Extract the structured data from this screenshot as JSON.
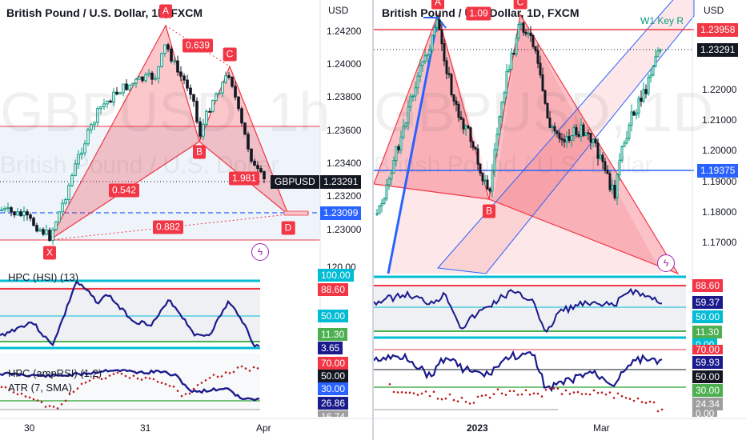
{
  "left": {
    "title": "British Pound / U.S. Dollar, 1h, FXCM",
    "watermark_big": "GBPUSD, 1h",
    "watermark_small": "British Pound / U.S. Dollar",
    "price_axis_unit": "USD",
    "price_ticks": [
      "1.24200",
      "1.24000",
      "1.23800",
      "1.23600",
      "1.23400",
      "1.23200",
      "1.23000",
      "120.00"
    ],
    "symbol_badge": "GBPUSD",
    "last_price_badge": "1.23291",
    "blue_line_badge": "1.23099",
    "pattern_points": [
      "X",
      "A",
      "B",
      "C",
      "D"
    ],
    "ratios": {
      "xb": "0.542",
      "ac": "0.639",
      "bd": "1.981",
      "xd": "0.882"
    },
    "indicator1_label": "HPC (HSI) (13)",
    "indicator1_badges": [
      "100.00",
      "88.60",
      "50.00",
      "11.30",
      "3.65"
    ],
    "indicator2_label": "HPC (ampRSI) (1,2)",
    "indicator3_label": "ATR (7, SMA)",
    "indicator2_badges": [
      "70.00",
      "50.00",
      "30.00",
      "26.86",
      "16.74"
    ],
    "time_ticks": [
      "30",
      "31",
      "Apr"
    ],
    "colors": {
      "bullish": "#089981",
      "bearish": "#131722",
      "pattern": "#f23645",
      "hsi": "#1a1a8c",
      "cyan": "#00bcd4"
    }
  },
  "right": {
    "title": "British Pound / U.S. Dollar, 1D, FXCM",
    "watermark_big": "GBPUSD, 1D",
    "watermark_small": "British Pound / U.S. Dollar",
    "price_axis_unit": "USD",
    "price_ticks": [
      "1.22000",
      "1.21000",
      "1.20000",
      "1.19000",
      "1.18000",
      "1.17000"
    ],
    "key_label": "W1 Key R",
    "red_line_badge": "1.23958",
    "last_price_badge": "1.23291",
    "blue_line_badge": "1.19375",
    "pattern_points": [
      "A",
      "B",
      "C"
    ],
    "ratio_partial": "1.09",
    "indicator1_badges": [
      "88.60",
      "59.37",
      "50.00",
      "11.30",
      "0.00"
    ],
    "indicator2_badges": [
      "70.00",
      "59.93",
      "50.00",
      "30.00",
      "24.34",
      "0.00"
    ],
    "time_ticks": [
      "2023",
      "Mar"
    ]
  }
}
